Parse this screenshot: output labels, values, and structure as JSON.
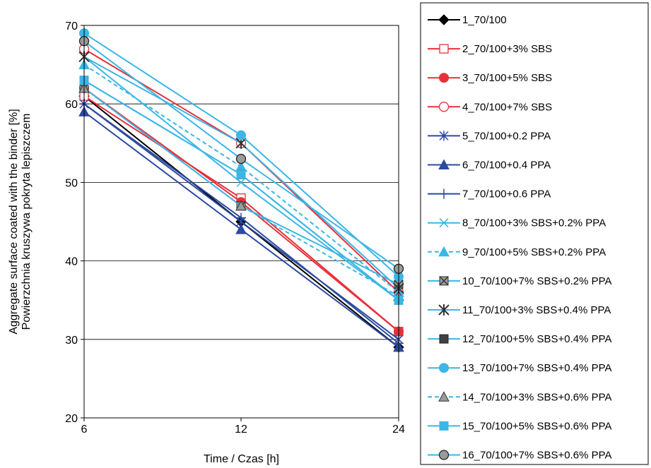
{
  "chart_data": {
    "type": "line",
    "x": [
      "6",
      "12",
      "24"
    ],
    "xlabel": "Time / Czas [h]",
    "ylabel": [
      "Aggregate surface coated with the binder [%]",
      "Powierzchnia kruszywa pokryta lepiszczem"
    ],
    "ylim": [
      20,
      70
    ],
    "yticks": [
      20,
      30,
      40,
      50,
      60,
      70
    ],
    "grid": "horizontal",
    "legend_position": "right",
    "series": [
      {
        "name": "1_70/100",
        "values": [
          61,
          45,
          29
        ],
        "color": "#000000",
        "marker": "diamond",
        "dash": false,
        "fill": "#000000"
      },
      {
        "name": "2_70/100+3% SBS",
        "values": [
          61,
          48,
          31
        ],
        "color": "#e8303a",
        "marker": "square-open",
        "dash": false,
        "fill": "#ffffff"
      },
      {
        "name": "3_70/100+5% SBS",
        "values": [
          62,
          47.5,
          31
        ],
        "color": "#e8303a",
        "marker": "circle",
        "dash": false,
        "fill": "#e8303a"
      },
      {
        "name": "4_70/100+7% SBS",
        "values": [
          67,
          55,
          36
        ],
        "color": "#e8303a",
        "marker": "circle-open",
        "dash": false,
        "fill": "#ffffff"
      },
      {
        "name": "5_70/100+0.2 PPA",
        "values": [
          60,
          45,
          30
        ],
        "color": "#2b4aa0",
        "marker": "star",
        "dash": false,
        "fill": "#2b4aa0"
      },
      {
        "name": "6_70/100+0.4 PPA",
        "values": [
          59,
          44,
          29
        ],
        "color": "#2b4aa0",
        "marker": "triangle",
        "dash": false,
        "fill": "#2b4aa0"
      },
      {
        "name": "7_70/100+0.6 PPA",
        "values": [
          60,
          45.5,
          29.5
        ],
        "color": "#2b4aa0",
        "marker": "plus",
        "dash": false,
        "fill": "#2b4aa0"
      },
      {
        "name": "8_70/100+3% SBS+0.2% PPA",
        "values": [
          66,
          50,
          35
        ],
        "color": "#3bb6e6",
        "marker": "x",
        "dash": false,
        "fill": "#3bb6e6"
      },
      {
        "name": "9_70/100+5% SBS+0.2% PPA",
        "values": [
          65,
          52,
          36
        ],
        "color": "#3bb6e6",
        "marker": "triangle",
        "dash": true,
        "fill": "#3bb6e6"
      },
      {
        "name": "10_70/100+7% SBS+0.2% PPA",
        "values": [
          62,
          47,
          37
        ],
        "color": "#3bb6e6",
        "marker": "square-x",
        "dash": false,
        "fill": "#9a9a9a"
      },
      {
        "name": "11_70/100+3% SBS+0.4% PPA",
        "values": [
          66,
          55,
          36.5
        ],
        "color": "#3bb6e6",
        "marker": "star-gray",
        "dash": false,
        "fill": "#9a9a9a"
      },
      {
        "name": "12_70/100+5% SBS+0.4% PPA",
        "values": [
          63,
          51,
          35
        ],
        "color": "#3bb6e6",
        "marker": "square-dark",
        "dash": false,
        "fill": "#404040"
      },
      {
        "name": "13_70/100+7% SBS+0.4% PPA",
        "values": [
          69,
          56,
          38
        ],
        "color": "#3bb6e6",
        "marker": "circle",
        "dash": false,
        "fill": "#3bb6e6"
      },
      {
        "name": "14_70/100+3% SBS+0.6% PPA",
        "values": [
          62,
          47,
          35.5
        ],
        "color": "#3bb6e6",
        "marker": "triangle-gray",
        "dash": true,
        "fill": "#9a9a9a"
      },
      {
        "name": "15_70/100+5% SBS+0.6% PPA",
        "values": [
          63,
          51,
          35
        ],
        "color": "#3bb6e6",
        "marker": "square",
        "dash": false,
        "fill": "#3bb6e6"
      },
      {
        "name": "16_70/100+7% SBS+0.6% PPA",
        "values": [
          68,
          53,
          39
        ],
        "color": "#3bb6e6",
        "marker": "circle-gray",
        "dash": false,
        "fill": "#9a9a9a"
      }
    ]
  }
}
